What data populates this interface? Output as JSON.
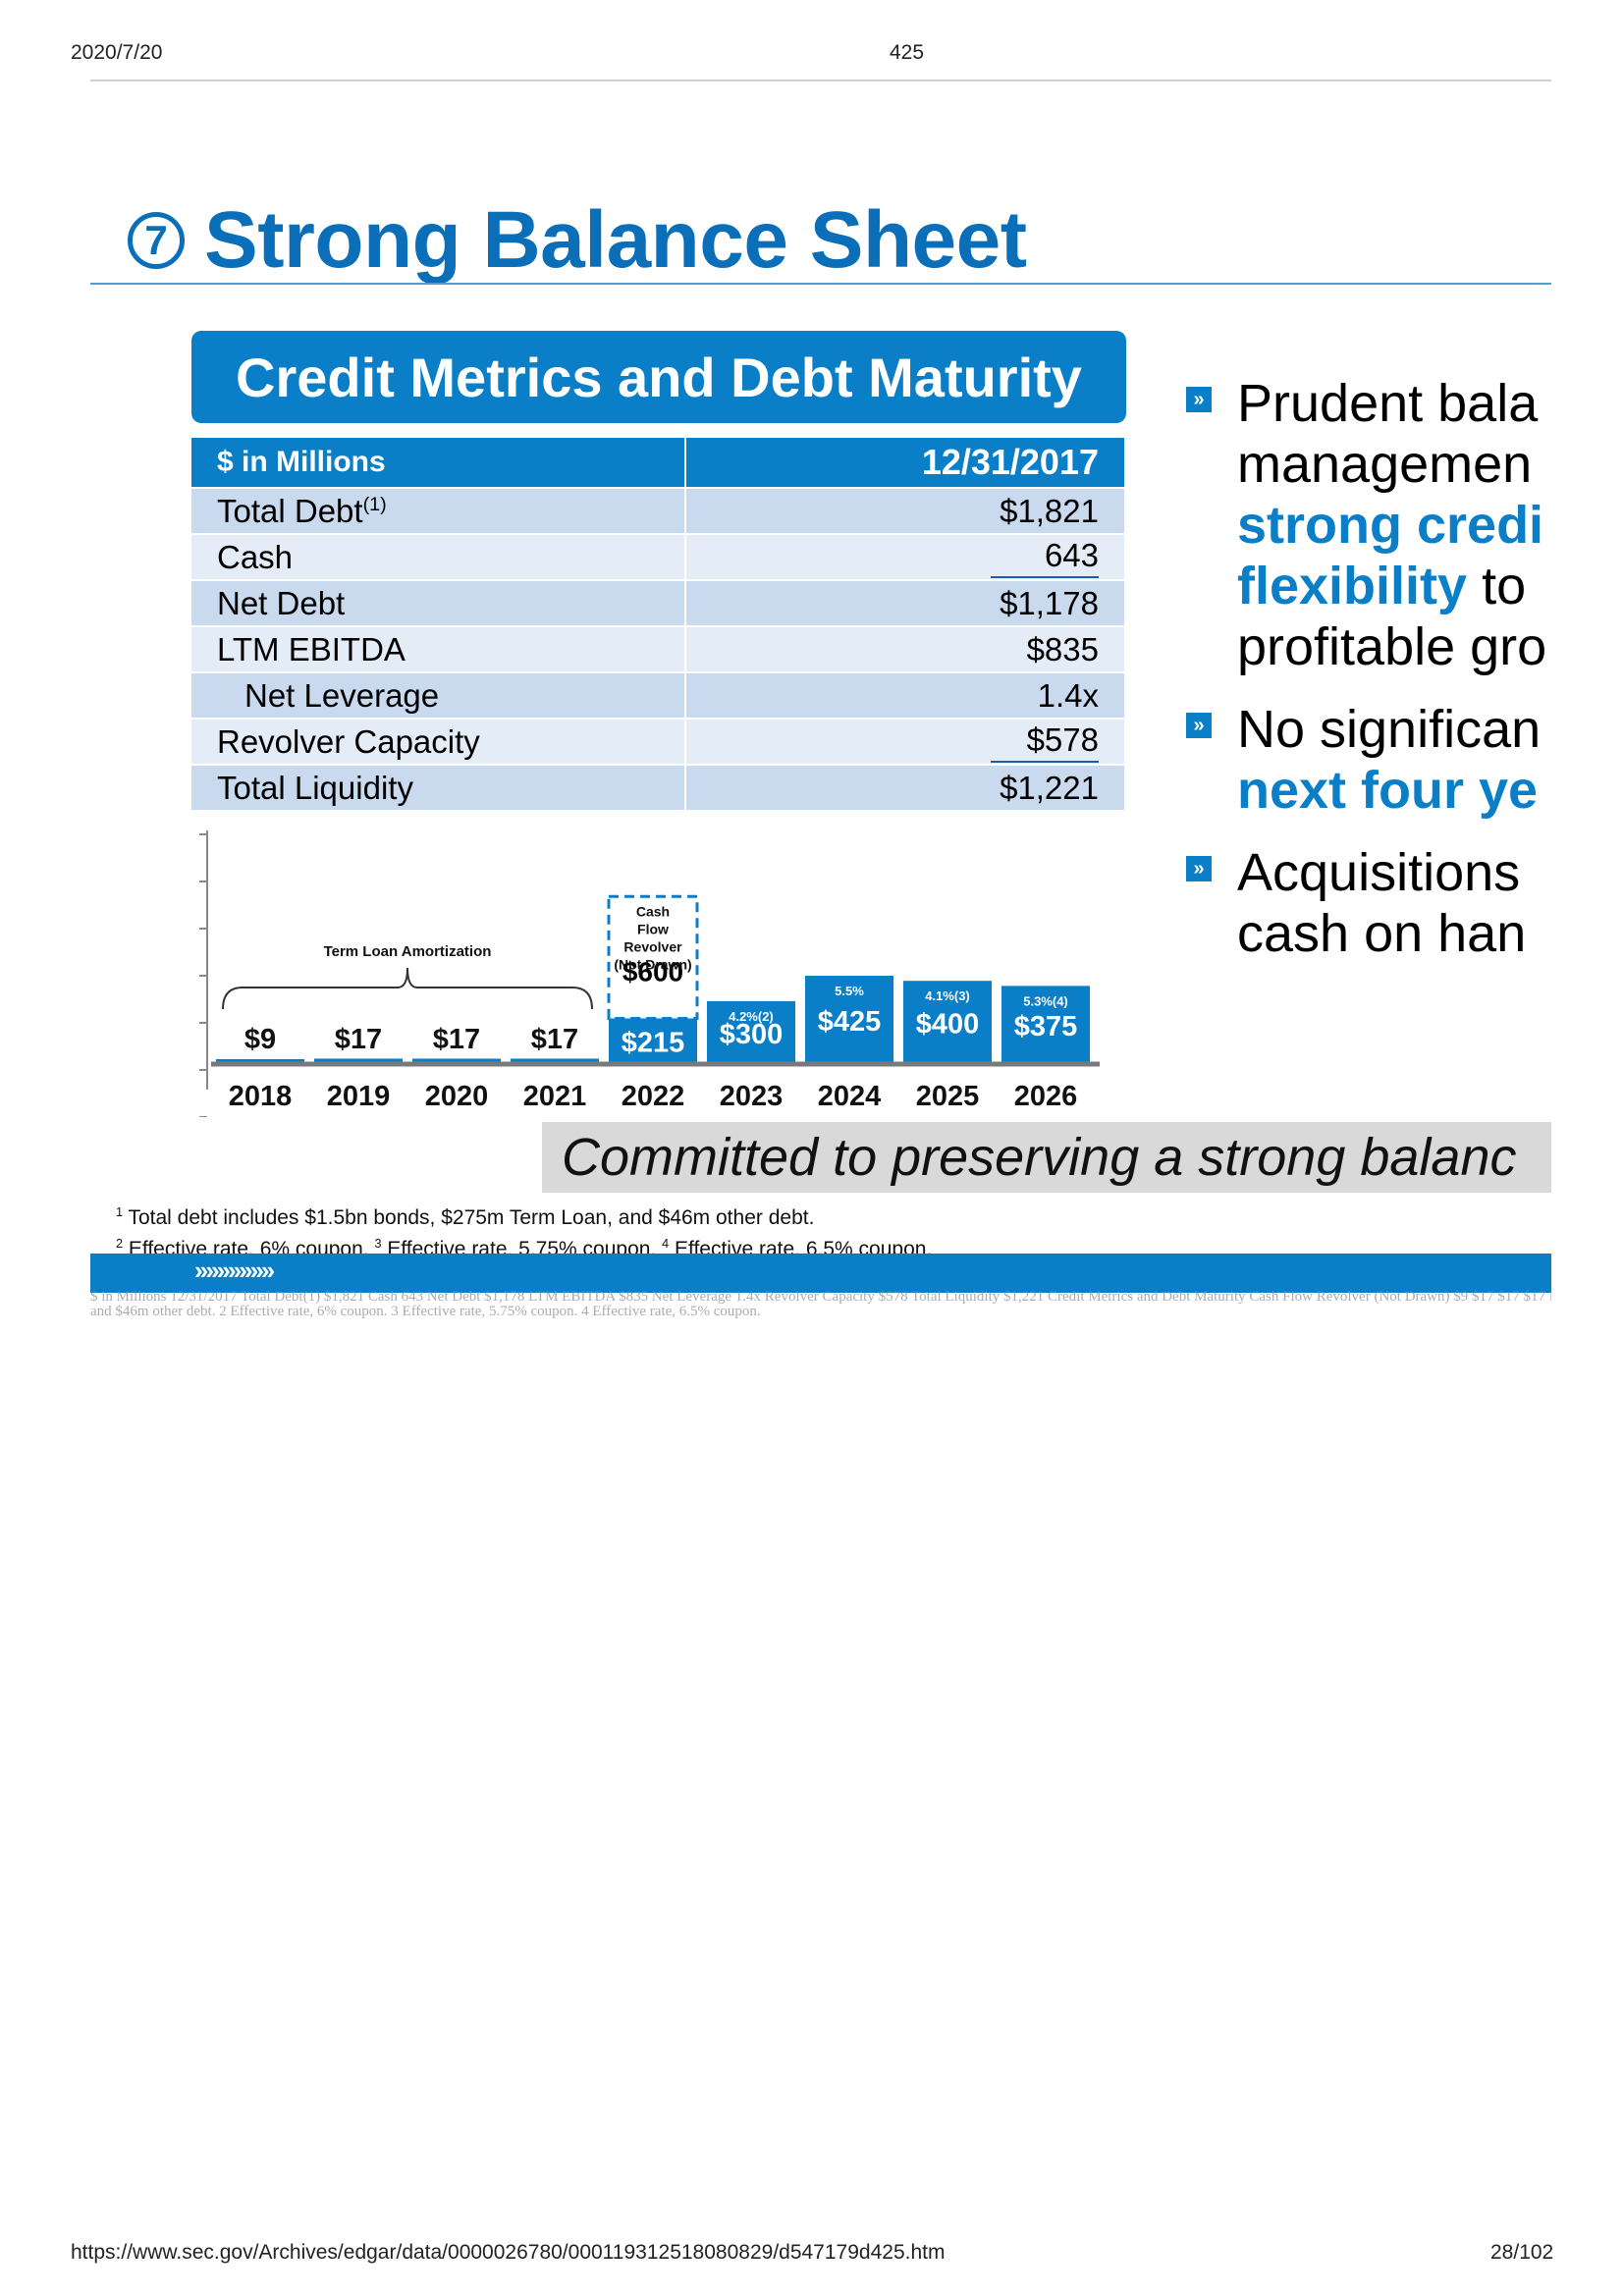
{
  "print_header": {
    "date": "2020/7/20",
    "page": "425"
  },
  "slide": {
    "number": "7",
    "title": "Strong Balance Sheet",
    "panel_title": "Credit Metrics and Debt Maturity",
    "table": {
      "header": {
        "label": "$ in Millions",
        "value": "12/31/2017"
      },
      "rows": [
        {
          "label": "Total Debt",
          "sup": "(1)",
          "value": "$1,821"
        },
        {
          "label": "Cash",
          "value": "643"
        },
        {
          "label": "Net Debt",
          "value": "$1,178"
        },
        {
          "label": "LTM EBITDA",
          "value": "$835"
        },
        {
          "label": "Net Leverage",
          "value": "1.4x"
        },
        {
          "label": "Revolver Capacity",
          "value": "$578"
        },
        {
          "label": "Total Liquidity",
          "value": "$1,221"
        }
      ]
    },
    "bullets": [
      {
        "lines": [
          "Prudent bala",
          "managemen"
        ],
        "hl_lines": [
          "strong credi",
          "flexibility"
        ],
        "tail_word": " to",
        "last_line": "profitable gro"
      },
      {
        "line1": "No significan",
        "hl_line": "next four ye"
      },
      {
        "line1": "Acquisitions",
        "line2": "cash on han"
      }
    ],
    "banner": "Committed to preserving a strong balanc",
    "footnotes": {
      "f1": "Total debt includes $1.5bn bonds, $275m Term Loan, and $46m other debt.",
      "f2": "Effective rate, 6% coupon.",
      "f3": "Effective rate, 5.75% coupon.",
      "f4": "Effective rate, 6.5% coupon."
    },
    "chevrons": "››››››››››››››"
  },
  "chart_data": {
    "type": "bar",
    "categories": [
      "2018",
      "2019",
      "2020",
      "2021",
      "2022",
      "2023",
      "2024",
      "2025",
      "2026"
    ],
    "series": [
      {
        "values": [
          9,
          17,
          17,
          17,
          215,
          300,
          425,
          400,
          375
        ]
      },
      {
        "values": [
          0,
          0,
          0,
          0,
          600,
          0,
          0,
          0,
          0
        ]
      }
    ],
    "data_labels": [
      "$9",
      "$17",
      "$17",
      "$17",
      "$215",
      "$300",
      "$425",
      "$400",
      "$375"
    ],
    "revolver_label": "$600",
    "revolver_note": [
      "Cash",
      "Flow",
      "Revolver",
      "(Not Drawn)"
    ],
    "rate_labels": {
      "2023": "4.2%(2)",
      "2024": "5.5%",
      "2025": "4.1%(3)",
      "2026": "5.3%(4)"
    },
    "annotation": "Term Loan Amortization",
    "colors": {
      "bar": "#0a7fc7"
    }
  },
  "ocr_text": {
    "line1": "$ in Millions 12/31/2017 Total Debt(1) $1,821 Cash 643 Net Debt $1,178 LTM EBITDA $835 Net Leverage 1.4x Revolver Capacity $578 Total Liquidity $1,221 Credit Metrics and Debt Maturity Cash Flow Revolver (Not Drawn) $9 $17 $17 $17 Prudent balance sheet management with strong credit profile provides flexibility to invest in profitable growth No significant maturities in next four years Acquisitions funded with cash on hand Term Loan Amortization 4.2%(2) 5.5% 4.1%(3) 5.3%(4) 1 Total debt includes $1.5bn bonds, $275m Term Loan,",
    "line2": "and $46m other debt. 2 Effective rate, 6% coupon. 3 Effective rate, 5.75% coupon. 4 Effective rate, 6.5% coupon."
  },
  "print_footer": {
    "url": "https://www.sec.gov/Archives/edgar/data/0000026780/000119312518080829/d547179d425.htm",
    "page": "28/102"
  }
}
